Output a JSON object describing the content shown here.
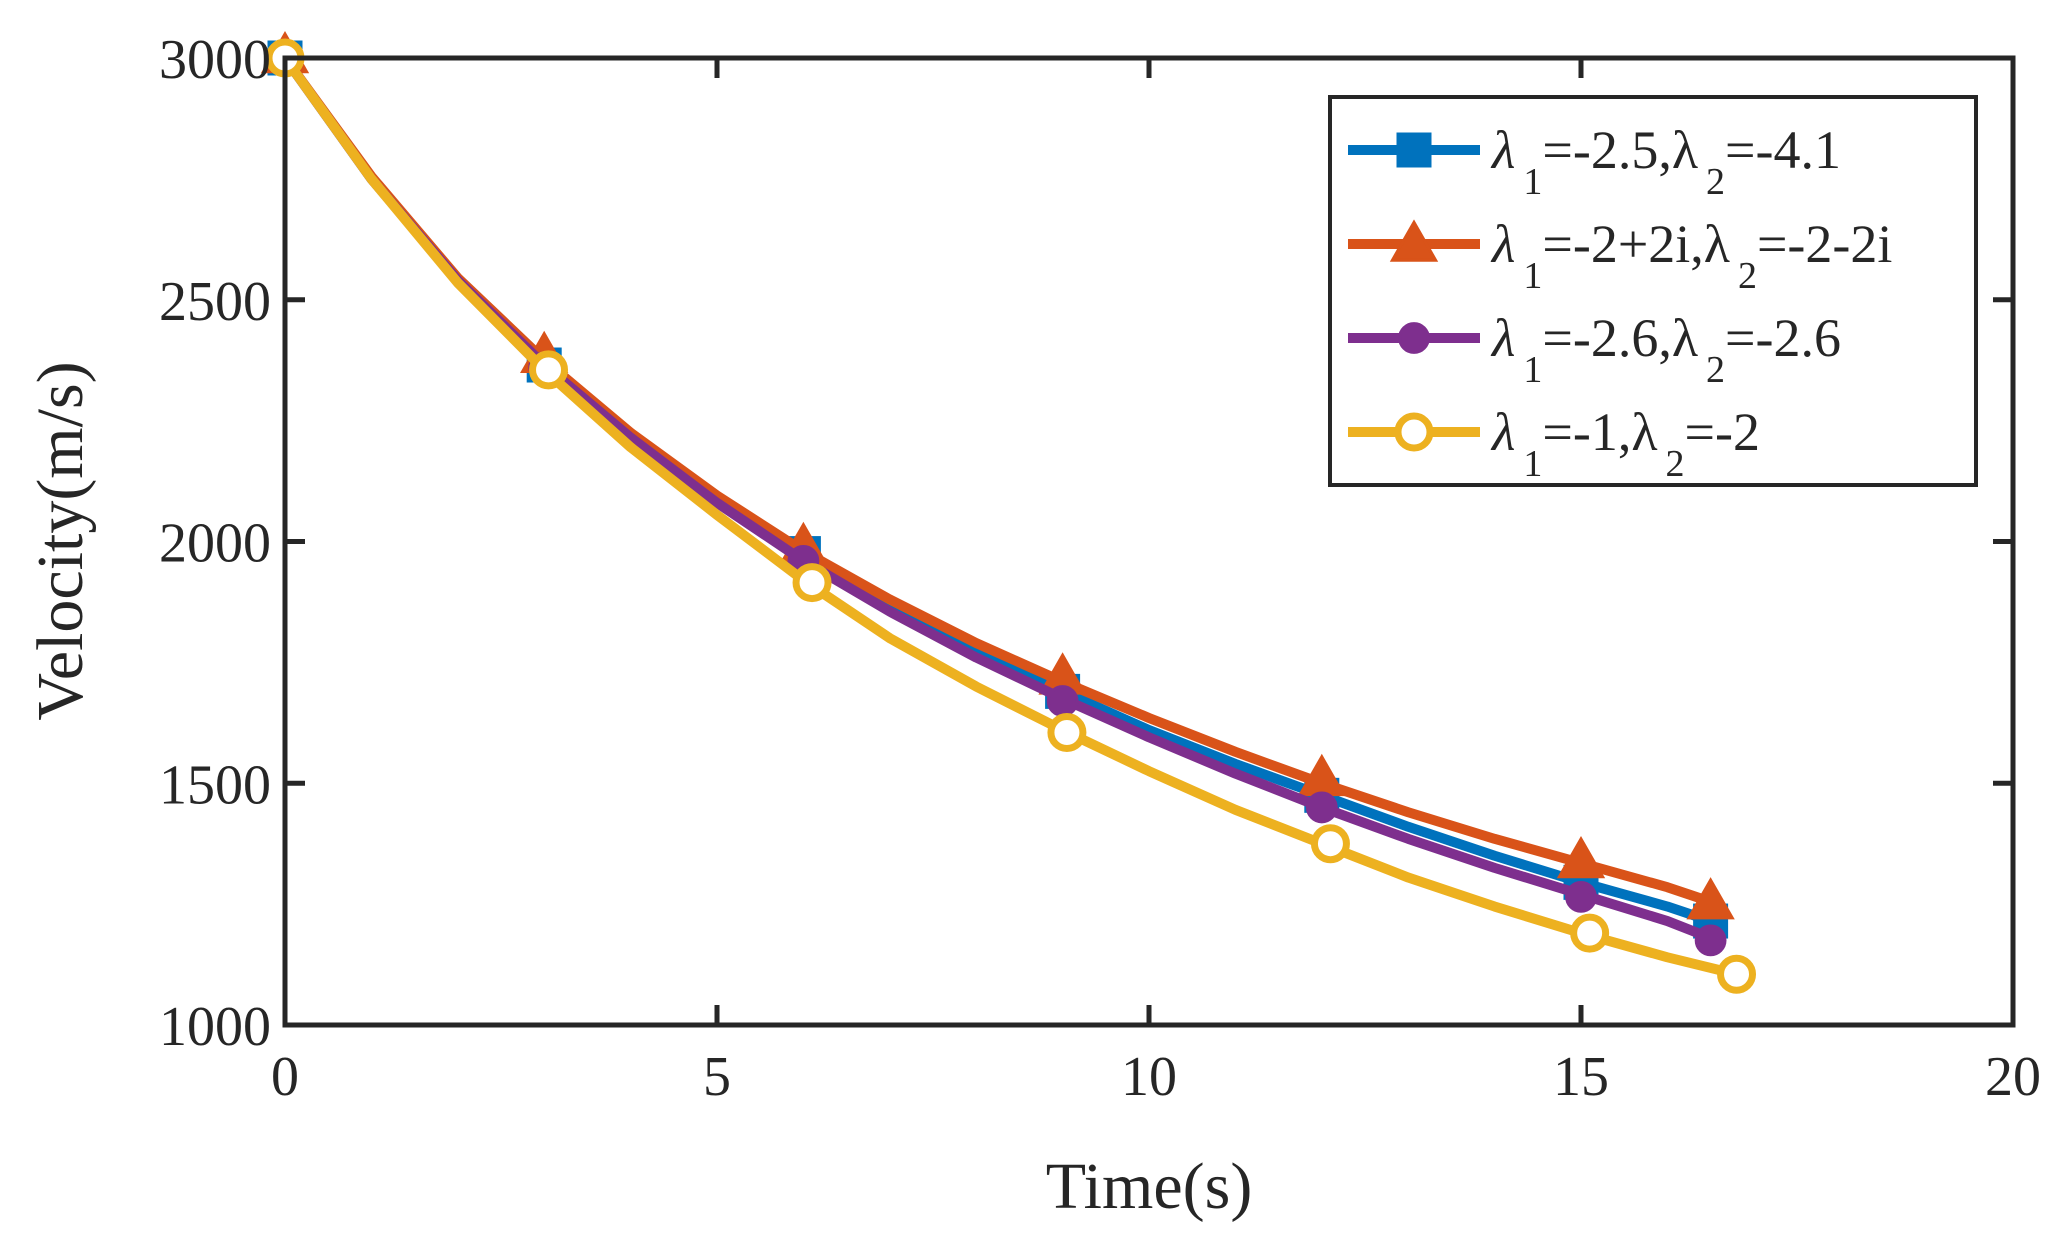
{
  "chart_data": {
    "type": "line",
    "title": "",
    "xlabel": "Time(s)",
    "ylabel": "Velocity(m/s)",
    "xlim": [
      0,
      20
    ],
    "ylim": [
      1000,
      3000
    ],
    "xticks": [
      0,
      5,
      10,
      15,
      20
    ],
    "yticks": [
      1000,
      1500,
      2000,
      2500,
      3000
    ],
    "xtick_labels": [
      "0",
      "5",
      "10",
      "15",
      "20"
    ],
    "ytick_labels": [
      "1000",
      "1500",
      "2000",
      "2500",
      "3000"
    ],
    "grid": false,
    "legend_position": "top-right",
    "series": [
      {
        "name": "λ1=-2.5,λ2=-4.1",
        "legend": {
          "l1": "λ",
          "s1": "1",
          "m": "=-2.5,λ",
          "s2": "2",
          "e": "=-4.1"
        },
        "color": "#0072BD",
        "marker": "square",
        "x": [
          0,
          1,
          2,
          3,
          4,
          5,
          6,
          7,
          8,
          9,
          10,
          11,
          12,
          13,
          14,
          15,
          16,
          16.5
        ],
        "y": [
          3000,
          2750,
          2540,
          2365,
          2215,
          2085,
          1975,
          1870,
          1775,
          1690,
          1610,
          1540,
          1475,
          1410,
          1350,
          1295,
          1245,
          1215
        ],
        "marker_x": [
          0,
          3,
          6,
          9,
          12,
          15,
          16.5
        ],
        "marker_y": [
          3000,
          2365,
          1975,
          1690,
          1475,
          1295,
          1215
        ]
      },
      {
        "name": "λ1=-2+2i,λ2=-2-2i",
        "legend": {
          "l1": "λ",
          "s1": "1",
          "m": "=-2+2i,λ",
          "s2": "2",
          "e": "=-2-2i"
        },
        "color": "#D95319",
        "marker": "triangle",
        "x": [
          0,
          1,
          2,
          3,
          4,
          5,
          6,
          7,
          8,
          9,
          10,
          11,
          12,
          13,
          14,
          15,
          16,
          16.5
        ],
        "y": [
          3000,
          2755,
          2545,
          2375,
          2225,
          2095,
          1980,
          1880,
          1790,
          1710,
          1635,
          1565,
          1500,
          1440,
          1385,
          1335,
          1285,
          1255
        ],
        "marker_x": [
          0,
          3,
          6,
          9,
          12,
          15,
          16.5
        ],
        "marker_y": [
          3005,
          2385,
          1990,
          1720,
          1510,
          1340,
          1255
        ]
      },
      {
        "name": "λ1=-2.6,λ2=-2.6",
        "legend": {
          "l1": "λ",
          "s1": "1",
          "m": "=-2.6,λ",
          "s2": "2",
          "e": "=-2.6"
        },
        "color": "#7E2F8E",
        "marker": "dot",
        "x": [
          0,
          1,
          2,
          3,
          4,
          5,
          6,
          7,
          8,
          9,
          10,
          11,
          12,
          13,
          14,
          15,
          16,
          16.5
        ],
        "y": [
          3000,
          2750,
          2540,
          2365,
          2215,
          2080,
          1960,
          1855,
          1760,
          1675,
          1595,
          1520,
          1450,
          1385,
          1325,
          1270,
          1215,
          1180
        ],
        "marker_x": [
          0,
          3,
          6,
          9,
          12,
          15,
          16.5
        ],
        "marker_y": [
          3000,
          2360,
          1960,
          1670,
          1450,
          1265,
          1175
        ]
      },
      {
        "name": "λ1=-1,λ2=-2",
        "legend": {
          "l1": "λ",
          "s1": "1",
          "m": "=-1,λ",
          "s2": "2",
          "e": "=-2"
        },
        "color": "#EDB120",
        "marker": "circle",
        "x": [
          0,
          1,
          2,
          3,
          4,
          5,
          6,
          7,
          8,
          9,
          10,
          11,
          12,
          13,
          14,
          15,
          16,
          16.8
        ],
        "y": [
          3000,
          2750,
          2535,
          2355,
          2195,
          2055,
          1920,
          1800,
          1700,
          1610,
          1525,
          1445,
          1375,
          1305,
          1245,
          1190,
          1140,
          1105
        ],
        "marker_x": [
          0,
          3.05,
          6.1,
          9.05,
          12.1,
          15.1,
          16.8
        ],
        "marker_y": [
          3000,
          2355,
          1915,
          1605,
          1375,
          1190,
          1105
        ]
      }
    ]
  }
}
